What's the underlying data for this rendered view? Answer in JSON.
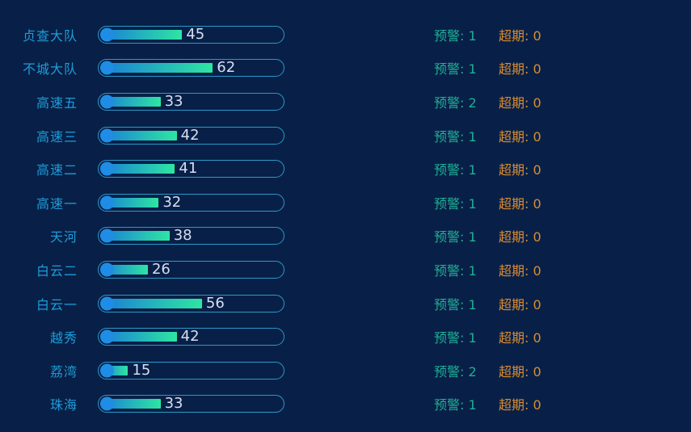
{
  "colors": {
    "background": "#082047",
    "category_label": "#1e9cd9",
    "warning_text": "#1fae96",
    "overdue_text": "#d98c33",
    "bar_border": "#2e97c8",
    "bar_dot": "#1f8de6",
    "bar_gradient_start": "#1a7dd8",
    "bar_gradient_end": "#2ee6a2",
    "bar_value_text": "#d9ddf2"
  },
  "labels": {
    "warning_prefix": "预警:",
    "overdue_prefix": "超期:"
  },
  "chart_data": {
    "type": "bar",
    "orientation": "horizontal",
    "title": "",
    "categories": [
      "贞查大队",
      "不城大队",
      "高速五",
      "高速三",
      "高速二",
      "高速一",
      "天河",
      "白云二",
      "白云一",
      "越秀",
      "荔湾",
      "珠海"
    ],
    "values": [
      45,
      62,
      33,
      42,
      41,
      32,
      38,
      26,
      56,
      42,
      15,
      33
    ],
    "series": [
      {
        "name": "预警",
        "values": [
          1,
          1,
          2,
          1,
          1,
          1,
          1,
          1,
          1,
          1,
          2,
          1
        ]
      },
      {
        "name": "超期",
        "values": [
          0,
          0,
          0,
          0,
          0,
          0,
          0,
          0,
          0,
          0,
          0,
          0
        ]
      }
    ],
    "xlim": [
      0,
      100
    ],
    "grid": false,
    "legend": false
  }
}
